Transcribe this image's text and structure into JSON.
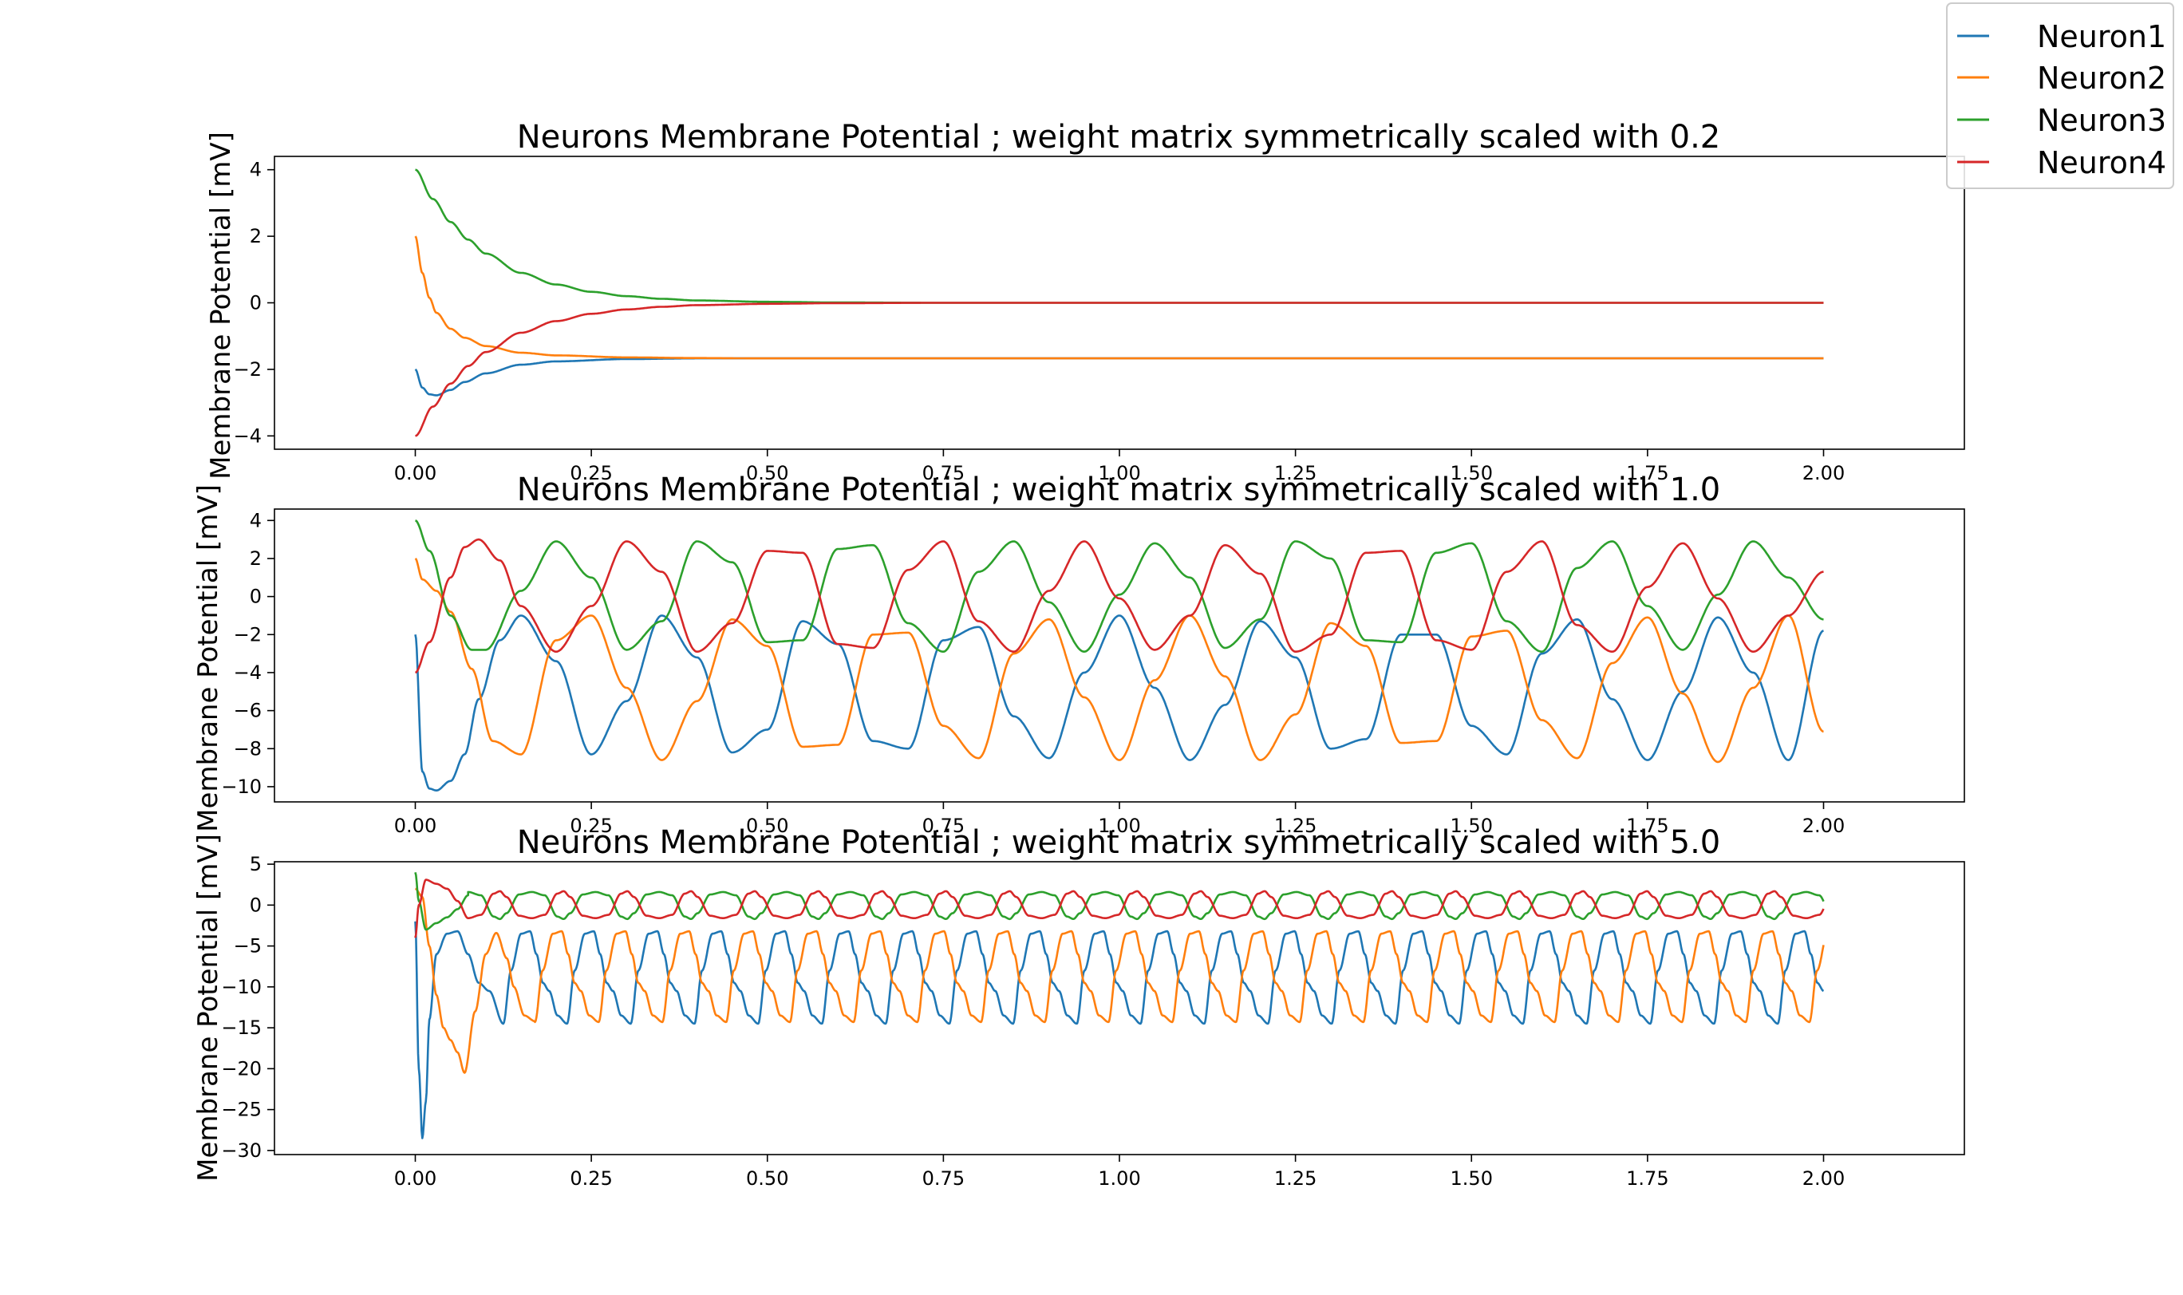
{
  "legend": {
    "placement": "top-right (outside axes)",
    "entries": [
      "Neuron1",
      "Neuron2",
      "Neuron3",
      "Neuron4"
    ]
  },
  "colors": {
    "Neuron1": "#1f77b4",
    "Neuron2": "#ff7f0e",
    "Neuron3": "#2ca02c",
    "Neuron4": "#d62728"
  },
  "chart_data": [
    {
      "type": "line",
      "title": "Neurons Membrane Potential ; weight matrix symmetrically scaled with 0.2",
      "xlabel": "",
      "ylabel": "Membrane Potential [mV]",
      "xlim": [
        -0.2,
        2.2
      ],
      "ylim": [
        -4.4,
        4.4
      ],
      "xticks": [
        0.0,
        0.25,
        0.5,
        0.75,
        1.0,
        1.25,
        1.5,
        1.75,
        2.0
      ],
      "xtick_labels": [
        "0.00",
        "0.25",
        "0.50",
        "0.75",
        "1.00",
        "1.25",
        "1.50",
        "1.75",
        "2.00"
      ],
      "yticks": [
        -4,
        -2,
        0,
        2,
        4
      ],
      "ytick_labels": [
        "−4",
        "−2",
        "0",
        "2",
        "4"
      ],
      "grid": false,
      "series": [
        {
          "name": "Neuron1",
          "x": [
            0,
            0.01,
            0.02,
            0.03,
            0.05,
            0.07,
            0.1,
            0.15,
            0.2,
            0.3,
            0.4,
            0.5,
            0.75,
            1.0,
            1.5,
            2.0
          ],
          "y": [
            -2.0,
            -2.55,
            -2.75,
            -2.78,
            -2.62,
            -2.38,
            -2.12,
            -1.86,
            -1.76,
            -1.69,
            -1.67,
            -1.67,
            -1.67,
            -1.67,
            -1.67,
            -1.67
          ]
        },
        {
          "name": "Neuron2",
          "x": [
            0,
            0.01,
            0.02,
            0.03,
            0.05,
            0.07,
            0.1,
            0.15,
            0.2,
            0.3,
            0.4,
            0.5,
            0.75,
            1.0,
            1.5,
            2.0
          ],
          "y": [
            2.0,
            0.9,
            0.15,
            -0.3,
            -0.78,
            -1.05,
            -1.3,
            -1.5,
            -1.58,
            -1.64,
            -1.66,
            -1.67,
            -1.67,
            -1.67,
            -1.67,
            -1.67
          ]
        },
        {
          "name": "Neuron3",
          "x": [
            0,
            0.025,
            0.05,
            0.075,
            0.1,
            0.15,
            0.2,
            0.25,
            0.3,
            0.35,
            0.4,
            0.5,
            0.6,
            0.75,
            1.0,
            1.5,
            2.0
          ],
          "y": [
            4.0,
            3.12,
            2.43,
            1.9,
            1.48,
            0.9,
            0.55,
            0.33,
            0.2,
            0.12,
            0.07,
            0.03,
            0.01,
            0.0,
            0.0,
            0.0,
            0.0
          ]
        },
        {
          "name": "Neuron4",
          "x": [
            0,
            0.025,
            0.05,
            0.075,
            0.1,
            0.15,
            0.2,
            0.25,
            0.3,
            0.35,
            0.4,
            0.5,
            0.6,
            0.75,
            1.0,
            1.5,
            2.0
          ],
          "y": [
            -4.0,
            -3.12,
            -2.43,
            -1.9,
            -1.48,
            -0.9,
            -0.55,
            -0.33,
            -0.2,
            -0.12,
            -0.07,
            -0.03,
            -0.01,
            0.0,
            0.0,
            0.0,
            0.0
          ]
        }
      ]
    },
    {
      "type": "line",
      "title": "Neurons Membrane Potential ; weight matrix symmetrically scaled with 1.0",
      "xlabel": "",
      "ylabel": "Membrane Potential [mV]",
      "xlim": [
        -0.2,
        2.2
      ],
      "ylim": [
        -10.8,
        4.6
      ],
      "xticks": [
        0.0,
        0.25,
        0.5,
        0.75,
        1.0,
        1.25,
        1.5,
        1.75,
        2.0
      ],
      "xtick_labels": [
        "0.00",
        "0.25",
        "0.50",
        "0.75",
        "1.00",
        "1.25",
        "1.50",
        "1.75",
        "2.00"
      ],
      "yticks": [
        -10,
        -8,
        -6,
        -4,
        -2,
        0,
        2,
        4
      ],
      "ytick_labels": [
        "−10",
        "−8",
        "−6",
        "−4",
        "−2",
        "0",
        "2",
        "4"
      ],
      "grid": false,
      "series": [
        {
          "name": "Neuron1",
          "x": [
            0,
            0.01,
            0.02,
            0.03,
            0.05,
            0.07,
            0.09,
            0.12,
            0.15,
            0.2,
            0.25,
            0.3,
            0.35,
            0.4,
            0.45,
            0.5,
            0.55,
            0.6,
            0.65,
            0.7,
            0.75,
            0.8,
            0.85,
            0.9,
            0.95,
            1.0,
            1.05,
            1.1,
            1.15,
            1.2,
            1.25,
            1.3,
            1.35,
            1.4,
            1.45,
            1.5,
            1.55,
            1.6,
            1.65,
            1.7,
            1.75,
            1.8,
            1.85,
            1.9,
            1.95,
            2.0
          ],
          "y": [
            -2.0,
            -9.2,
            -10.1,
            -10.2,
            -9.7,
            -8.3,
            -5.4,
            -2.3,
            -1.0,
            -3.4,
            -8.3,
            -5.5,
            -1.0,
            -3.2,
            -8.2,
            -7.0,
            -1.3,
            -2.5,
            -7.6,
            -8.0,
            -2.3,
            -1.6,
            -6.3,
            -8.5,
            -4.0,
            -1.0,
            -4.8,
            -8.6,
            -5.7,
            -1.3,
            -3.2,
            -8.0,
            -7.5,
            -2.0,
            -2.0,
            -6.8,
            -8.3,
            -3.0,
            -1.2,
            -5.4,
            -8.6,
            -5.0,
            -1.1,
            -4.0,
            -8.6,
            -1.8
          ]
        },
        {
          "name": "Neuron2",
          "x": [
            0,
            0.01,
            0.03,
            0.05,
            0.08,
            0.11,
            0.15,
            0.2,
            0.25,
            0.3,
            0.35,
            0.4,
            0.45,
            0.5,
            0.55,
            0.6,
            0.65,
            0.7,
            0.75,
            0.8,
            0.85,
            0.9,
            0.95,
            1.0,
            1.05,
            1.1,
            1.15,
            1.2,
            1.25,
            1.3,
            1.35,
            1.4,
            1.45,
            1.5,
            1.55,
            1.6,
            1.65,
            1.7,
            1.75,
            1.8,
            1.85,
            1.9,
            1.95,
            2.0
          ],
          "y": [
            2.0,
            0.9,
            0.3,
            -0.8,
            -3.8,
            -7.6,
            -8.3,
            -2.3,
            -1.0,
            -4.8,
            -8.6,
            -5.5,
            -1.2,
            -2.6,
            -7.9,
            -7.8,
            -2.0,
            -1.9,
            -6.8,
            -8.5,
            -3.0,
            -1.2,
            -5.3,
            -8.6,
            -4.4,
            -1.0,
            -4.2,
            -8.6,
            -6.2,
            -1.4,
            -2.6,
            -7.7,
            -7.6,
            -2.1,
            -1.8,
            -6.5,
            -8.5,
            -3.5,
            -1.1,
            -5.1,
            -8.7,
            -4.8,
            -1.0,
            -7.1
          ]
        },
        {
          "name": "Neuron3",
          "x": [
            0,
            0.02,
            0.05,
            0.08,
            0.1,
            0.15,
            0.2,
            0.25,
            0.3,
            0.35,
            0.4,
            0.45,
            0.5,
            0.55,
            0.6,
            0.65,
            0.7,
            0.75,
            0.8,
            0.85,
            0.9,
            0.95,
            1.0,
            1.05,
            1.1,
            1.15,
            1.2,
            1.25,
            1.3,
            1.35,
            1.4,
            1.45,
            1.5,
            1.55,
            1.6,
            1.65,
            1.7,
            1.75,
            1.8,
            1.85,
            1.9,
            1.95,
            2.0
          ],
          "y": [
            4.0,
            2.4,
            -1.0,
            -2.8,
            -2.8,
            0.3,
            2.9,
            1.0,
            -2.8,
            -1.3,
            2.9,
            1.8,
            -2.4,
            -2.3,
            2.5,
            2.7,
            -1.4,
            -2.9,
            1.3,
            2.9,
            -0.3,
            -2.9,
            0.1,
            2.8,
            1.0,
            -2.7,
            -1.2,
            2.9,
            2.0,
            -2.3,
            -2.4,
            2.3,
            2.8,
            -1.3,
            -2.9,
            1.5,
            2.9,
            -0.5,
            -2.8,
            0.1,
            2.9,
            1.0,
            -1.2
          ]
        },
        {
          "name": "Neuron4",
          "x": [
            0,
            0.02,
            0.05,
            0.07,
            0.09,
            0.12,
            0.15,
            0.2,
            0.25,
            0.3,
            0.35,
            0.4,
            0.45,
            0.5,
            0.55,
            0.6,
            0.65,
            0.7,
            0.75,
            0.8,
            0.85,
            0.9,
            0.95,
            1.0,
            1.05,
            1.1,
            1.15,
            1.2,
            1.25,
            1.3,
            1.35,
            1.4,
            1.45,
            1.5,
            1.55,
            1.6,
            1.65,
            1.7,
            1.75,
            1.8,
            1.85,
            1.9,
            1.95,
            2.0
          ],
          "y": [
            -4.0,
            -2.4,
            1.0,
            2.6,
            3.0,
            1.9,
            -0.5,
            -2.9,
            -0.5,
            2.9,
            1.3,
            -2.9,
            -1.4,
            2.4,
            2.3,
            -2.5,
            -2.7,
            1.4,
            2.9,
            -1.3,
            -2.9,
            0.3,
            2.9,
            -0.1,
            -2.8,
            -1.0,
            2.7,
            1.2,
            -2.9,
            -2.0,
            2.3,
            2.4,
            -2.3,
            -2.8,
            1.3,
            2.9,
            -1.5,
            -2.9,
            0.5,
            2.8,
            -0.1,
            -2.9,
            -1.0,
            1.3
          ]
        }
      ]
    },
    {
      "type": "line",
      "title": "Neurons Membrane Potential ; weight matrix symmetrically scaled with 5.0",
      "xlabel": "",
      "ylabel": "Membrane Potential [mV]",
      "xlim": [
        -0.2,
        2.2
      ],
      "ylim": [
        -30.5,
        5.3
      ],
      "xticks": [
        0.0,
        0.25,
        0.5,
        0.75,
        1.0,
        1.25,
        1.5,
        1.75,
        2.0
      ],
      "xtick_labels": [
        "0.00",
        "0.25",
        "0.50",
        "0.75",
        "1.00",
        "1.25",
        "1.50",
        "1.75",
        "2.00"
      ],
      "yticks": [
        -30,
        -25,
        -20,
        -15,
        -10,
        -5,
        0,
        5
      ],
      "ytick_labels": [
        "−30",
        "−25",
        "−20",
        "−15",
        "−10",
        "−5",
        "0",
        "5"
      ],
      "grid": false,
      "osc_period": 0.0905,
      "series": [
        {
          "name": "Neuron1",
          "x": [
            0,
            0.005,
            0.01,
            0.015,
            0.02,
            0.03,
            0.045,
            0.06,
            0.075,
            0.09,
            0.105,
            0.125
          ],
          "y": [
            -2.0,
            -20.0,
            -28.5,
            -24.0,
            -14.0,
            -6.0,
            -3.5,
            -3.2,
            -6.0,
            -9.5,
            -10.5,
            -14.5
          ],
          "osc_from": 0.125,
          "osc_to": 2.0,
          "osc_cycle_phase": [
            0,
            0.12,
            0.28,
            0.42,
            0.52,
            0.62,
            0.72,
            0.85,
            1.0
          ],
          "osc_cycle_values": [
            -14.5,
            -8.0,
            -3.5,
            -3.2,
            -6.0,
            -9.5,
            -10.5,
            -13.5,
            -14.5
          ]
        },
        {
          "name": "Neuron2",
          "x": [
            0,
            0.01,
            0.02,
            0.03,
            0.04,
            0.05,
            0.06,
            0.07,
            0.085,
            0.1,
            0.115,
            0.13,
            0.14,
            0.155,
            0.17
          ],
          "y": [
            2.0,
            1.0,
            -5.0,
            -11.0,
            -15.0,
            -16.5,
            -18.0,
            -20.5,
            -13.0,
            -6.0,
            -3.4,
            -6.5,
            -10.0,
            -13.5,
            -14.2
          ],
          "osc_from": 0.17,
          "osc_to": 2.0,
          "osc_cycle_phase": [
            0,
            0.12,
            0.28,
            0.42,
            0.52,
            0.62,
            0.72,
            0.85,
            1.0
          ],
          "osc_cycle_values": [
            -14.3,
            -8.0,
            -3.5,
            -3.2,
            -6.0,
            -9.5,
            -10.5,
            -13.5,
            -14.3
          ]
        },
        {
          "name": "Neuron3",
          "x": [
            0,
            0.005,
            0.015,
            0.03,
            0.045,
            0.06,
            0.075
          ],
          "y": [
            4.0,
            0.5,
            -3.0,
            -2.2,
            -1.5,
            -0.5,
            1.2
          ],
          "osc_from": 0.075,
          "osc_to": 2.0,
          "osc_cycle_phase": [
            0,
            0.2,
            0.4,
            0.5,
            0.6,
            0.8,
            1.0
          ],
          "osc_cycle_values": [
            1.6,
            1.2,
            -1.4,
            -1.7,
            -1.0,
            1.3,
            1.6
          ]
        },
        {
          "name": "Neuron4",
          "x": [
            0,
            0.005,
            0.015,
            0.03,
            0.045,
            0.06,
            0.075
          ],
          "y": [
            -4.0,
            0.0,
            3.1,
            2.6,
            2.0,
            0.5,
            -1.6
          ],
          "osc_from": 0.075,
          "osc_to": 2.0,
          "osc_cycle_phase": [
            0,
            0.2,
            0.4,
            0.5,
            0.6,
            0.8,
            1.0
          ],
          "osc_cycle_values": [
            -1.6,
            -1.2,
            1.4,
            1.7,
            1.0,
            -1.3,
            -1.6
          ]
        }
      ]
    }
  ]
}
